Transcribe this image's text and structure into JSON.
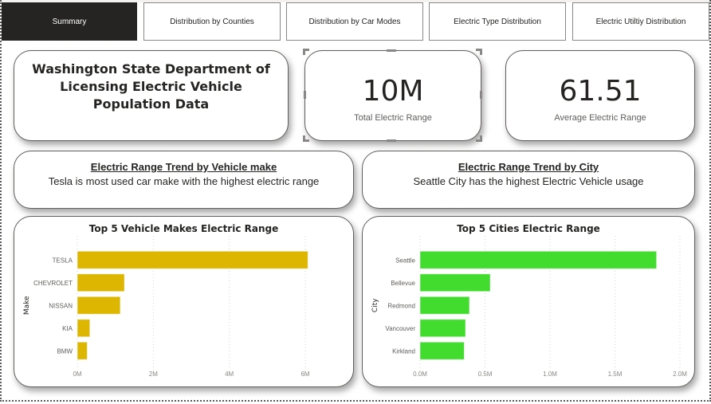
{
  "nav": {
    "tabs": [
      {
        "label": "Summary",
        "active": true
      },
      {
        "label": "Distribution by Counties",
        "active": false
      },
      {
        "label": "Distribution by Car Modes",
        "active": false
      },
      {
        "label": "Electric Type Distribution",
        "active": false
      },
      {
        "label": "Electric Utiltiy Distribution",
        "active": false
      }
    ]
  },
  "header": {
    "title": "Washington State Department of Licensing Electric Vehicle Population Data"
  },
  "kpis": [
    {
      "value": "10M",
      "label": "Total Electric Range"
    },
    {
      "value": "61.51",
      "label": "Average Electric Range"
    }
  ],
  "insights": [
    {
      "heading": "Electric Range Trend by Vehicle make",
      "body": "Tesla is most used car make with the highest electric range"
    },
    {
      "heading": "Electric Range Trend by City",
      "body": "Seattle City  has the highest Electric Vehicle usage"
    }
  ],
  "colors": {
    "makes_bar": "#DCB600",
    "cities_bar": "#41DC2E",
    "active_tab": "#252423"
  },
  "chart_data": [
    {
      "type": "bar",
      "orientation": "horizontal",
      "title": "Top 5 Vehicle Makes Electric Range",
      "xlabel": "",
      "ylabel": "Make",
      "categories": [
        "TESLA",
        "CHEVROLET",
        "NISSAN",
        "KIA",
        "BMW"
      ],
      "values": [
        6070000,
        1240000,
        1130000,
        330000,
        260000
      ],
      "xlim": [
        0,
        6500000
      ],
      "xticks": [
        0,
        2000000,
        4000000,
        6000000
      ],
      "xtick_labels": [
        "0M",
        "2M",
        "4M",
        "6M"
      ],
      "grid": true,
      "color": "#DCB600"
    },
    {
      "type": "bar",
      "orientation": "horizontal",
      "title": "Top 5 Cities Electric Range",
      "xlabel": "",
      "ylabel": "City",
      "categories": [
        "Seattle",
        "Bellevue",
        "Redmond",
        "Vancouver",
        "Kirkland"
      ],
      "values": [
        1820000,
        540000,
        380000,
        350000,
        340000
      ],
      "xlim": [
        0,
        2000000
      ],
      "xticks": [
        0,
        500000,
        1000000,
        1500000,
        2000000
      ],
      "xtick_labels": [
        "0.0M",
        "0.5M",
        "1.0M",
        "1.5M",
        "2.0M"
      ],
      "grid": true,
      "color": "#41DC2E"
    }
  ]
}
